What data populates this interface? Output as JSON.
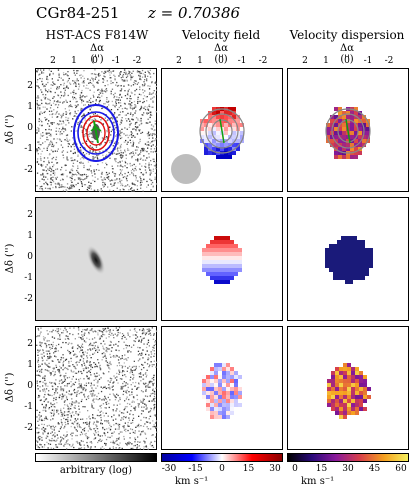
{
  "header": {
    "object_name": "CGr84-251",
    "redshift_label": "z = 0.70386"
  },
  "columns": [
    {
      "title": "HST-ACS F814W",
      "xlabel": "Δα ('')"
    },
    {
      "title": "Velocity field",
      "xlabel": "Δα ('')"
    },
    {
      "title": "Velocity dispersion",
      "xlabel": "Δα ('')"
    }
  ],
  "axes": {
    "ylabel": "Δδ ('')",
    "x_ticks": [
      "2",
      "1",
      "0",
      "-1",
      "-2"
    ],
    "y_ticks": [
      "2",
      "1",
      "0",
      "-1",
      "-2"
    ]
  },
  "colorbars": {
    "hst": {
      "label": "arbitrary (log)"
    },
    "velocity": {
      "ticks": [
        "-30",
        "-15",
        "0",
        "15",
        "30"
      ],
      "unit": "km s⁻¹",
      "range": [
        -30,
        30
      ]
    },
    "dispersion": {
      "ticks": [
        "0",
        "15",
        "30",
        "45",
        "60"
      ],
      "unit": "km s⁻¹",
      "range": [
        0,
        60
      ]
    }
  },
  "colors": {
    "contour_blue": "#1a1ae6",
    "contour_red": "#e01010",
    "contour_green": "#10a010",
    "contour_grey": "#888888",
    "psf_disc": "#bdbdbd",
    "model_dispersion": "#1a1a7a"
  }
}
